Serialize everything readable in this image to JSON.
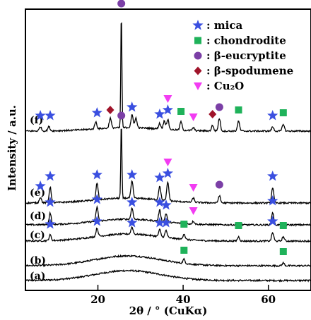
{
  "chart_data": {
    "type": "line",
    "xlabel": "2θ / °  (CuKα)",
    "ylabel": "Intensity / a.u.",
    "xlim": [
      3,
      70
    ],
    "x_ticks": [
      20,
      40,
      60
    ],
    "grid": false,
    "legend_position": "top-right",
    "legend": [
      {
        "key": "mica",
        "label": ": mica",
        "marker": "star",
        "color": "#3a4fe0"
      },
      {
        "key": "chondrodite",
        "label": ": chondrodite",
        "marker": "square",
        "color": "#1fb25a"
      },
      {
        "key": "eucryptite",
        "label": ": β-eucryptite",
        "marker": "circle",
        "color": "#7b3fa6"
      },
      {
        "key": "spodumene",
        "label": ": β-spodumene",
        "marker": "diamond",
        "color": "#a0142a"
      },
      {
        "key": "cu2o",
        "label": ": Cu₂O",
        "marker": "triangle-down",
        "color": "#f23cf2"
      }
    ],
    "series": [
      {
        "name": "(a)",
        "peaks": [],
        "markers": []
      },
      {
        "name": "(b)",
        "peaks": [
          {
            "x": 40.2,
            "h": 6
          },
          {
            "x": 63.5,
            "h": 4
          }
        ],
        "markers": [
          {
            "x": 40.2,
            "phase": "chondrodite"
          },
          {
            "x": 63.5,
            "phase": "chondrodite"
          }
        ]
      },
      {
        "name": "(c)",
        "peaks": [
          {
            "x": 8.8,
            "h": 8
          },
          {
            "x": 19.8,
            "h": 12
          },
          {
            "x": 28.0,
            "h": 10
          },
          {
            "x": 34.5,
            "h": 10
          },
          {
            "x": 36.0,
            "h": 10
          },
          {
            "x": 40.2,
            "h": 8
          },
          {
            "x": 53.0,
            "h": 6
          },
          {
            "x": 61.0,
            "h": 12
          },
          {
            "x": 63.5,
            "h": 6
          }
        ],
        "markers": [
          {
            "x": 8.8,
            "phase": "mica"
          },
          {
            "x": 19.8,
            "phase": "mica"
          },
          {
            "x": 28.0,
            "phase": "mica"
          },
          {
            "x": 34.5,
            "phase": "mica"
          },
          {
            "x": 36.0,
            "phase": "mica"
          },
          {
            "x": 40.2,
            "phase": "chondrodite"
          },
          {
            "x": 53.0,
            "phase": "chondrodite"
          },
          {
            "x": 61.0,
            "phase": "mica"
          },
          {
            "x": 63.5,
            "phase": "chondrodite"
          }
        ]
      },
      {
        "name": "(d)",
        "peaks": [
          {
            "x": 8.8,
            "h": 16
          },
          {
            "x": 19.8,
            "h": 20
          },
          {
            "x": 28.0,
            "h": 16
          },
          {
            "x": 34.5,
            "h": 16
          },
          {
            "x": 36.0,
            "h": 12
          },
          {
            "x": 42.4,
            "h": 4
          },
          {
            "x": 61.0,
            "h": 18
          }
        ],
        "markers": [
          {
            "x": 8.8,
            "phase": "mica"
          },
          {
            "x": 19.8,
            "phase": "mica"
          },
          {
            "x": 28.0,
            "phase": "mica"
          },
          {
            "x": 34.5,
            "phase": "mica"
          },
          {
            "x": 36.0,
            "phase": "mica"
          },
          {
            "x": 42.4,
            "phase": "cu2o"
          },
          {
            "x": 61.0,
            "phase": "mica"
          }
        ]
      },
      {
        "name": "(e)",
        "peaks": [
          {
            "x": 6.5,
            "h": 8
          },
          {
            "x": 8.8,
            "h": 22
          },
          {
            "x": 19.8,
            "h": 24
          },
          {
            "x": 25.5,
            "h": 108
          },
          {
            "x": 28.0,
            "h": 24
          },
          {
            "x": 34.5,
            "h": 20
          },
          {
            "x": 36.4,
            "h": 26
          },
          {
            "x": 42.4,
            "h": 6
          },
          {
            "x": 48.5,
            "h": 10
          },
          {
            "x": 61.0,
            "h": 22
          }
        ],
        "markers": [
          {
            "x": 6.5,
            "phase": "mica"
          },
          {
            "x": 8.8,
            "phase": "mica"
          },
          {
            "x": 19.8,
            "phase": "mica"
          },
          {
            "x": 25.5,
            "phase": "eucryptite"
          },
          {
            "x": 28.0,
            "phase": "mica"
          },
          {
            "x": 34.5,
            "phase": "mica"
          },
          {
            "x": 36.4,
            "phase": "mica"
          },
          {
            "x": 36.4,
            "phase": "cu2o"
          },
          {
            "x": 42.4,
            "phase": "cu2o"
          },
          {
            "x": 48.5,
            "phase": "eucryptite"
          },
          {
            "x": 61.0,
            "phase": "mica"
          }
        ]
      },
      {
        "name": "(f)",
        "peaks": [
          {
            "x": 6.5,
            "h": 6
          },
          {
            "x": 8.5,
            "h": 6
          },
          {
            "x": 19.5,
            "h": 10
          },
          {
            "x": 22.9,
            "h": 14
          },
          {
            "x": 25.5,
            "h": 165
          },
          {
            "x": 28.0,
            "h": 18
          },
          {
            "x": 28.9,
            "h": 14
          },
          {
            "x": 34.5,
            "h": 8
          },
          {
            "x": 35.6,
            "h": 12
          },
          {
            "x": 36.4,
            "h": 14
          },
          {
            "x": 39.5,
            "h": 12
          },
          {
            "x": 42.4,
            "h": 4
          },
          {
            "x": 46.9,
            "h": 8
          },
          {
            "x": 48.5,
            "h": 18
          },
          {
            "x": 53.0,
            "h": 14
          },
          {
            "x": 61.0,
            "h": 6
          },
          {
            "x": 63.5,
            "h": 10
          }
        ],
        "markers": [
          {
            "x": 6.5,
            "phase": "mica"
          },
          {
            "x": 8.8,
            "phase": "mica"
          },
          {
            "x": 19.8,
            "phase": "mica"
          },
          {
            "x": 22.9,
            "phase": "spodumene"
          },
          {
            "x": 25.5,
            "phase": "eucryptite"
          },
          {
            "x": 28.0,
            "phase": "mica"
          },
          {
            "x": 34.5,
            "phase": "mica"
          },
          {
            "x": 36.4,
            "phase": "mica"
          },
          {
            "x": 36.4,
            "phase": "cu2o"
          },
          {
            "x": 39.5,
            "phase": "chondrodite"
          },
          {
            "x": 42.4,
            "phase": "cu2o"
          },
          {
            "x": 46.9,
            "phase": "spodumene"
          },
          {
            "x": 48.5,
            "phase": "eucryptite"
          },
          {
            "x": 53.0,
            "phase": "chondrodite"
          },
          {
            "x": 61.0,
            "phase": "mica"
          },
          {
            "x": 63.5,
            "phase": "chondrodite"
          }
        ]
      }
    ]
  }
}
